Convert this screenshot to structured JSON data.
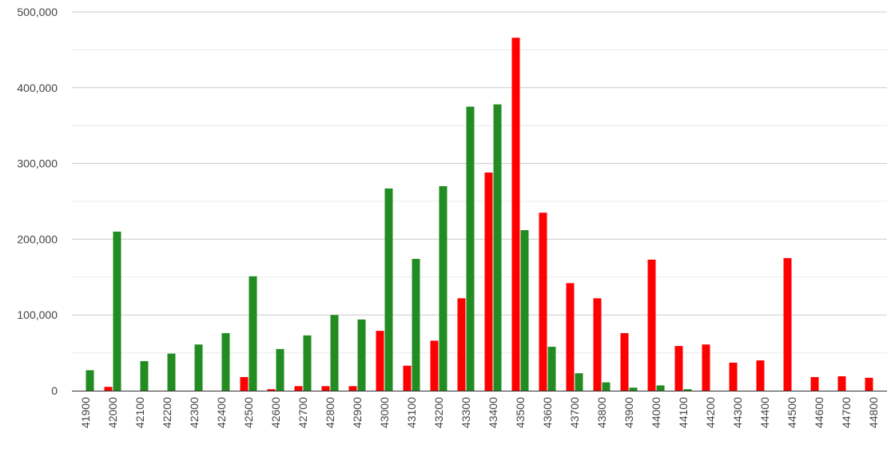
{
  "chart_data": {
    "type": "bar",
    "categories": [
      "41900",
      "42000",
      "42100",
      "42200",
      "42300",
      "42400",
      "42500",
      "42600",
      "42700",
      "42800",
      "42900",
      "43000",
      "43100",
      "43200",
      "43300",
      "43400",
      "43500",
      "43600",
      "43700",
      "43800",
      "43900",
      "44000",
      "44100",
      "44200",
      "44300",
      "44400",
      "44500",
      "44600",
      "44700",
      "44800"
    ],
    "series": [
      {
        "color": "#ff0000",
        "values": [
          0,
          5000,
          0,
          0,
          0,
          0,
          18000,
          2000,
          6000,
          6000,
          6000,
          79000,
          33000,
          66000,
          122000,
          288000,
          466000,
          235000,
          142000,
          122000,
          76000,
          173000,
          59000,
          61000,
          37000,
          40000,
          175000,
          18000,
          19000,
          17000
        ]
      },
      {
        "color": "#228b22",
        "values": [
          27000,
          210000,
          39000,
          49000,
          61000,
          76000,
          151000,
          55000,
          73000,
          100000,
          94000,
          267000,
          174000,
          270000,
          375000,
          378000,
          212000,
          58000,
          23000,
          11000,
          4000,
          7000,
          2000,
          0,
          0,
          0,
          0,
          0,
          0,
          0
        ]
      }
    ],
    "yticks": [
      "0",
      "100,000",
      "200,000",
      "300,000",
      "400,000",
      "500,000"
    ],
    "ylim": [
      0,
      500000
    ],
    "grid": true,
    "legend": "none"
  }
}
